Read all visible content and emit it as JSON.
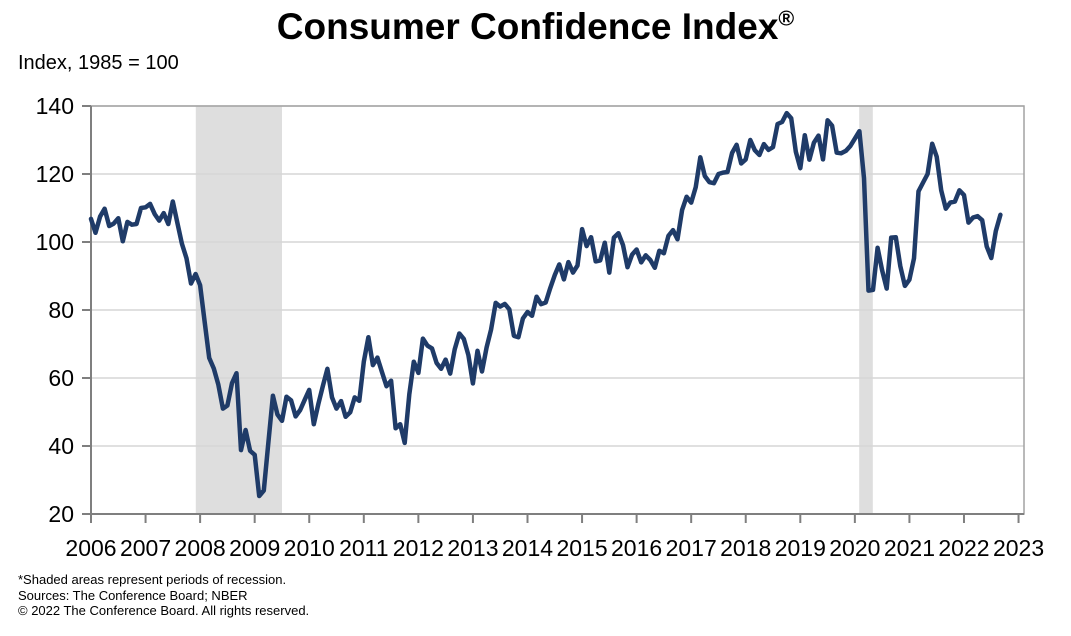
{
  "header": {
    "title": "Consumer Confidence Index",
    "registered_mark": "®",
    "unit_label": "Index, 1985 = 100"
  },
  "footnotes": {
    "recession_note": "*Shaded areas represent periods of recession.",
    "sources": "Sources: The Conference Board; NBER",
    "copyright": "© 2022 The Conference Board. All rights reserved."
  },
  "chart_data": {
    "type": "line",
    "title": "Consumer Confidence Index®",
    "ylabel": "Index, 1985 = 100",
    "xlabel": "",
    "grid": "horizontal",
    "legend_position": "none",
    "xlim": [
      2006,
      2023.1
    ],
    "ylim": [
      20,
      140
    ],
    "y_ticks": [
      20,
      40,
      60,
      80,
      100,
      120,
      140
    ],
    "x_tick_labels": [
      "2006",
      "2007",
      "2008",
      "2009",
      "2010",
      "2011",
      "2012",
      "2013",
      "2014",
      "2015",
      "2016",
      "2017",
      "2018",
      "2019",
      "2020",
      "2021",
      "2022",
      "2023"
    ],
    "recession_bands": [
      {
        "start_year": 2007.92,
        "end_year": 2009.5
      },
      {
        "start_year": 2020.08,
        "end_year": 2020.33
      }
    ],
    "colors": {
      "line": "#1f3b68",
      "recession_band": "#dedede",
      "gridline": "#d6d6d6",
      "frame": "#a2a2a2",
      "axis": "#7f7f7f",
      "text": "#000000"
    },
    "x_start": {
      "year": 2006,
      "month": 1,
      "frequency": "monthly"
    },
    "series": [
      {
        "name": "Consumer Confidence Index (monthly, Jan 2006 – Sep 2022)",
        "values": [
          106.8,
          102.7,
          107.5,
          109.8,
          104.7,
          105.4,
          107.0,
          100.2,
          105.9,
          105.1,
          105.3,
          110.0,
          110.2,
          111.2,
          108.2,
          106.3,
          108.5,
          105.3,
          111.9,
          105.6,
          99.5,
          95.2,
          87.8,
          90.6,
          87.3,
          76.4,
          65.9,
          62.8,
          58.1,
          51.0,
          51.9,
          58.5,
          61.4,
          38.8,
          44.7,
          38.6,
          37.4,
          25.3,
          26.9,
          40.8,
          54.8,
          49.3,
          47.4,
          54.5,
          53.4,
          48.7,
          50.6,
          53.6,
          56.5,
          46.4,
          52.3,
          57.7,
          62.7,
          54.3,
          51.0,
          53.2,
          48.6,
          49.9,
          54.3,
          53.3,
          64.8,
          72.0,
          63.8,
          66.0,
          61.7,
          57.6,
          59.2,
          45.2,
          46.4,
          40.9,
          55.2,
          64.8,
          61.5,
          71.6,
          69.5,
          68.7,
          64.4,
          62.7,
          65.4,
          61.3,
          68.4,
          73.1,
          71.5,
          66.7,
          58.4,
          68.0,
          61.9,
          69.0,
          74.3,
          82.1,
          81.0,
          81.8,
          80.2,
          72.4,
          72.0,
          77.5,
          79.4,
          78.3,
          83.9,
          81.7,
          82.2,
          86.4,
          90.3,
          93.4,
          89.0,
          94.1,
          91.0,
          93.1,
          103.8,
          98.8,
          101.4,
          94.3,
          94.6,
          99.8,
          91.0,
          101.3,
          102.6,
          99.1,
          92.6,
          96.3,
          97.8,
          94.0,
          96.1,
          94.7,
          92.4,
          97.4,
          96.7,
          101.8,
          103.5,
          100.8,
          109.4,
          113.3,
          111.6,
          116.1,
          124.9,
          119.4,
          117.6,
          117.3,
          120.0,
          120.4,
          120.6,
          126.2,
          128.6,
          123.1,
          124.3,
          130.0,
          127.0,
          125.6,
          128.8,
          127.1,
          127.9,
          134.7,
          135.3,
          137.9,
          136.4,
          126.6,
          121.7,
          131.4,
          124.2,
          129.2,
          131.3,
          124.3,
          135.8,
          134.2,
          126.3,
          126.1,
          126.8,
          128.2,
          130.4,
          132.6,
          118.8,
          85.7,
          85.9,
          98.3,
          91.7,
          86.3,
          101.3,
          101.4,
          92.9,
          87.1,
          88.9,
          95.2,
          114.9,
          117.5,
          120.0,
          128.9,
          125.1,
          115.2,
          109.8,
          111.6,
          111.9,
          115.2,
          113.8,
          105.7,
          107.2,
          107.6,
          106.4,
          98.7,
          95.3,
          103.2,
          108.0
        ]
      }
    ]
  }
}
